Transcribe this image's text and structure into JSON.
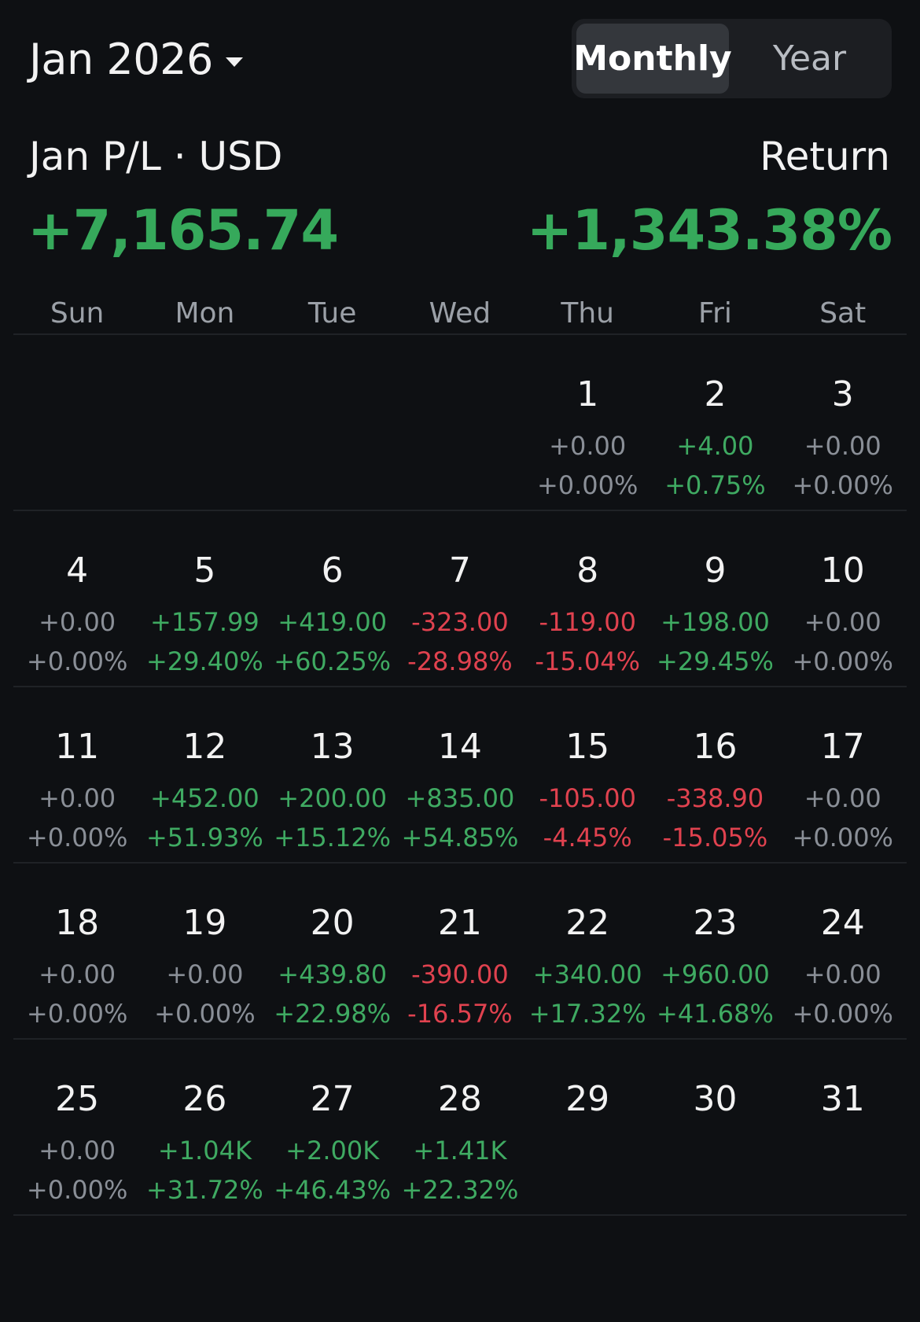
{
  "header": {
    "month_label": "Jan 2026",
    "tabs": [
      {
        "label": "Monthly",
        "active": true
      },
      {
        "label": "Year",
        "active": false
      }
    ]
  },
  "summary": {
    "pl_label": "Jan P/L · USD",
    "pl_value": "+7,165.74",
    "return_label": "Return",
    "return_value": "+1,343.38%"
  },
  "colors": {
    "positive": "#3faa62",
    "negative": "#e0424f",
    "neutral": "#8a8f97",
    "background": "#0e1013"
  },
  "weekdays": [
    "Sun",
    "Mon",
    "Tue",
    "Wed",
    "Thu",
    "Fri",
    "Sat"
  ],
  "weeks": [
    [
      null,
      null,
      null,
      null,
      {
        "day": "1",
        "pl": "+0.00",
        "pct": "+0.00%",
        "trend": "zero"
      },
      {
        "day": "2",
        "pl": "+4.00",
        "pct": "+0.75%",
        "trend": "pos"
      },
      {
        "day": "3",
        "pl": "+0.00",
        "pct": "+0.00%",
        "trend": "zero"
      }
    ],
    [
      {
        "day": "4",
        "pl": "+0.00",
        "pct": "+0.00%",
        "trend": "zero"
      },
      {
        "day": "5",
        "pl": "+157.99",
        "pct": "+29.40%",
        "trend": "pos"
      },
      {
        "day": "6",
        "pl": "+419.00",
        "pct": "+60.25%",
        "trend": "pos"
      },
      {
        "day": "7",
        "pl": "-323.00",
        "pct": "-28.98%",
        "trend": "neg"
      },
      {
        "day": "8",
        "pl": "-119.00",
        "pct": "-15.04%",
        "trend": "neg"
      },
      {
        "day": "9",
        "pl": "+198.00",
        "pct": "+29.45%",
        "trend": "pos"
      },
      {
        "day": "10",
        "pl": "+0.00",
        "pct": "+0.00%",
        "trend": "zero"
      }
    ],
    [
      {
        "day": "11",
        "pl": "+0.00",
        "pct": "+0.00%",
        "trend": "zero"
      },
      {
        "day": "12",
        "pl": "+452.00",
        "pct": "+51.93%",
        "trend": "pos"
      },
      {
        "day": "13",
        "pl": "+200.00",
        "pct": "+15.12%",
        "trend": "pos"
      },
      {
        "day": "14",
        "pl": "+835.00",
        "pct": "+54.85%",
        "trend": "pos"
      },
      {
        "day": "15",
        "pl": "-105.00",
        "pct": "-4.45%",
        "trend": "neg"
      },
      {
        "day": "16",
        "pl": "-338.90",
        "pct": "-15.05%",
        "trend": "neg"
      },
      {
        "day": "17",
        "pl": "+0.00",
        "pct": "+0.00%",
        "trend": "zero"
      }
    ],
    [
      {
        "day": "18",
        "pl": "+0.00",
        "pct": "+0.00%",
        "trend": "zero"
      },
      {
        "day": "19",
        "pl": "+0.00",
        "pct": "+0.00%",
        "trend": "zero"
      },
      {
        "day": "20",
        "pl": "+439.80",
        "pct": "+22.98%",
        "trend": "pos"
      },
      {
        "day": "21",
        "pl": "-390.00",
        "pct": "-16.57%",
        "trend": "neg"
      },
      {
        "day": "22",
        "pl": "+340.00",
        "pct": "+17.32%",
        "trend": "pos"
      },
      {
        "day": "23",
        "pl": "+960.00",
        "pct": "+41.68%",
        "trend": "pos"
      },
      {
        "day": "24",
        "pl": "+0.00",
        "pct": "+0.00%",
        "trend": "zero"
      }
    ],
    [
      {
        "day": "25",
        "pl": "+0.00",
        "pct": "+0.00%",
        "trend": "zero"
      },
      {
        "day": "26",
        "pl": "+1.04K",
        "pct": "+31.72%",
        "trend": "pos"
      },
      {
        "day": "27",
        "pl": "+2.00K",
        "pct": "+46.43%",
        "trend": "pos"
      },
      {
        "day": "28",
        "pl": "+1.41K",
        "pct": "+22.32%",
        "trend": "pos"
      },
      {
        "day": "29",
        "pl": null,
        "pct": null,
        "trend": "none"
      },
      {
        "day": "30",
        "pl": null,
        "pct": null,
        "trend": "none"
      },
      {
        "day": "31",
        "pl": null,
        "pct": null,
        "trend": "none"
      }
    ]
  ]
}
